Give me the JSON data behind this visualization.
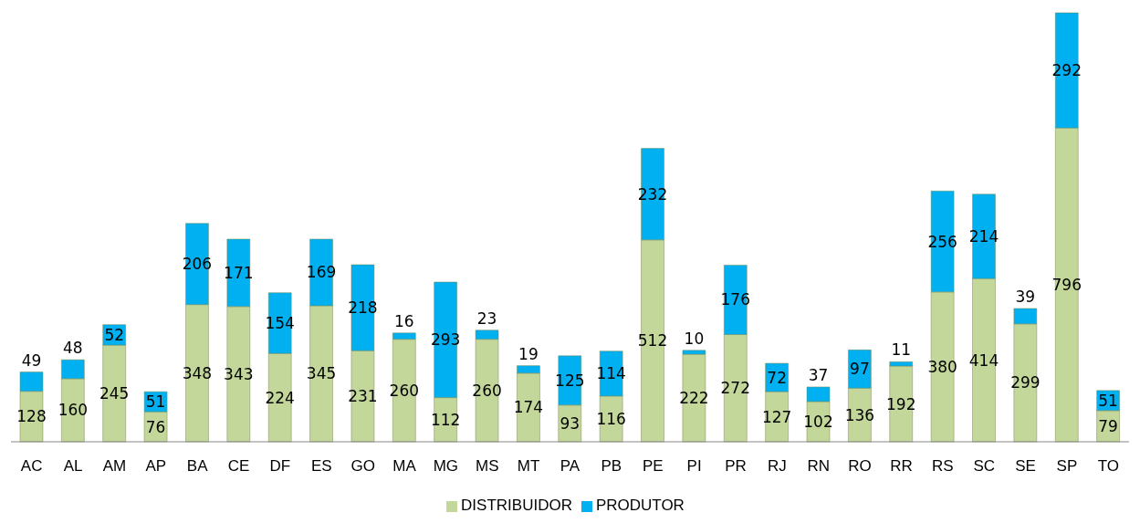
{
  "chart_data": {
    "type": "bar",
    "stacked": true,
    "data_labels": true,
    "legend": "bottom",
    "grid": false,
    "categories": [
      "AC",
      "AL",
      "AM",
      "AP",
      "BA",
      "CE",
      "DF",
      "ES",
      "GO",
      "MA",
      "MG",
      "MS",
      "MT",
      "PA",
      "PB",
      "PE",
      "PI",
      "PR",
      "RJ",
      "RN",
      "RO",
      "RR",
      "RS",
      "SC",
      "SE",
      "SP",
      "TO"
    ],
    "series": [
      {
        "name": "DISTRIBUIDOR",
        "color": "#c4d79b",
        "values": [
          128,
          160,
          245,
          76,
          348,
          343,
          224,
          345,
          231,
          260,
          112,
          260,
          174,
          93,
          116,
          512,
          222,
          272,
          127,
          102,
          136,
          192,
          380,
          414,
          299,
          796,
          79
        ]
      },
      {
        "name": "PRODUTOR",
        "color": "#00b0f0",
        "values": [
          49,
          48,
          52,
          51,
          206,
          171,
          154,
          169,
          218,
          16,
          293,
          23,
          19,
          125,
          114,
          232,
          10,
          176,
          72,
          37,
          97,
          11,
          256,
          214,
          39,
          292,
          51
        ]
      }
    ]
  }
}
